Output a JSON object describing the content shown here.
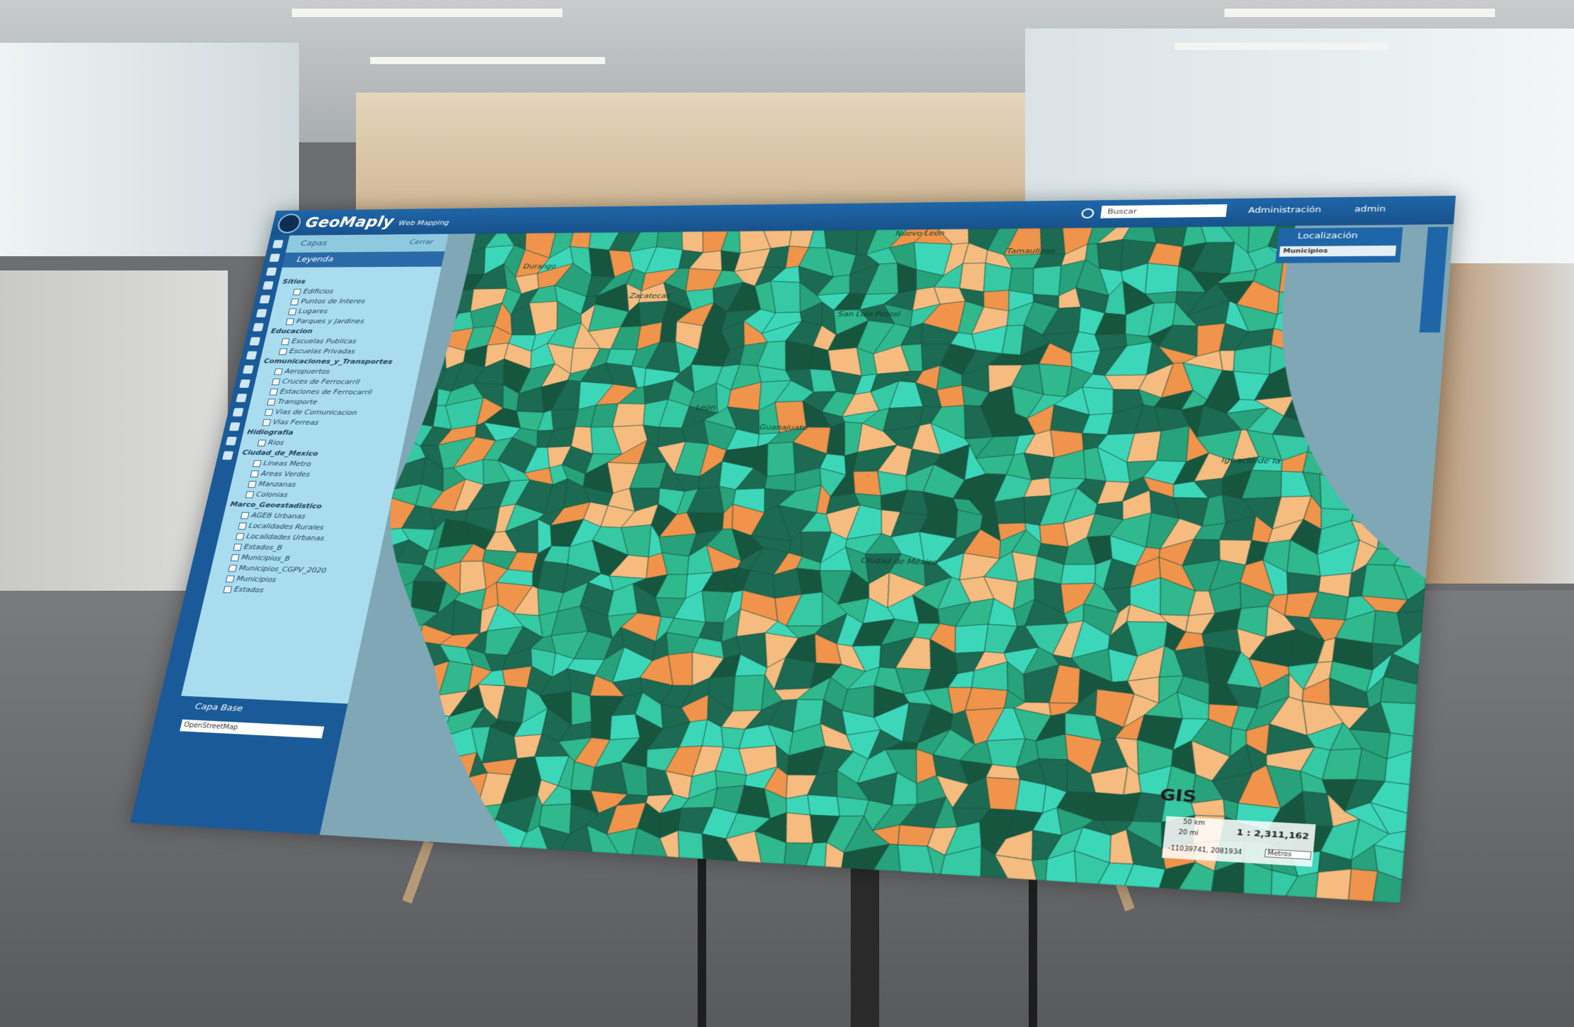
{
  "header": {
    "brand": "GeoMaply",
    "subtitle": "Web Mapping",
    "search_placeholder": "Buscar",
    "admin_link": "Administración",
    "user": "admin"
  },
  "sidebar": {
    "tab_layers": "Capas",
    "close": "Cerrar",
    "legend": "Leyenda",
    "layers": [
      {
        "name": "Sitios",
        "items": [
          "Edificios",
          "Puntos de Interes",
          "Lugares",
          "Parques y Jardines"
        ]
      },
      {
        "name": "Educacion",
        "items": [
          "Escuelas Publicas",
          "Escuelas Privadas"
        ]
      },
      {
        "name": "Comunicaciones_y_Transportes",
        "items": [
          "Aeropuertos",
          "Cruces de Ferrocarril",
          "Estaciones de Ferrocarril",
          "Transporte",
          "Vias de Comunicacion",
          "Vias Ferreas"
        ]
      },
      {
        "name": "Hidiografia",
        "items": [
          "Rios"
        ]
      },
      {
        "name": "Ciudad_de_Mexico",
        "items": [
          "Lineas Metro",
          "Areas Verdes",
          "Manzanas",
          "Colonias"
        ]
      },
      {
        "name": "Marco_Geoestadistico",
        "items": [
          "AGEB Urbanas",
          "Localidades Rurales",
          "Localidades Urbanas",
          "Estados_B",
          "Municipios_B",
          "Municipios_CGPV_2020",
          "Municipios",
          "Estados"
        ]
      }
    ],
    "base_title": "Capa Base",
    "base_select": "OpenStreetMap"
  },
  "locate": {
    "title": "Localización",
    "field": "Municipios"
  },
  "map": {
    "labels": [
      "Durango",
      "Zacatecas",
      "Nuevo León",
      "Tamaulipas",
      "San Luis Potosí",
      "León",
      "Guanajuato",
      "Ciudad de México",
      "Ignacio de la"
    ],
    "watermark": "GIS"
  },
  "scale": {
    "km": "50 km",
    "mi": "20 mi",
    "ratio": "1 : 2,311,162",
    "coords": "-11039741, 2081934",
    "units": "Metros"
  }
}
